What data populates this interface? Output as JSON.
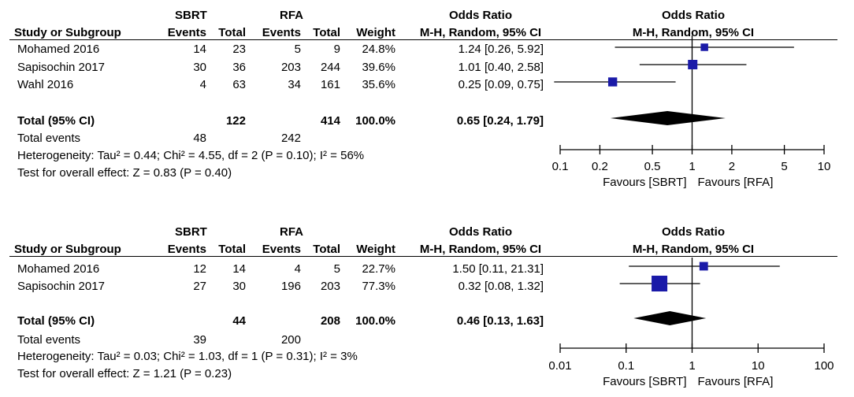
{
  "chart_data": [
    {
      "type": "forest",
      "headers": {
        "sbrt": "SBRT",
        "rfa": "RFA",
        "or_group": "Odds Ratio",
        "or_plot_group": "Odds Ratio",
        "study": "Study or Subgroup",
        "sbrt_events": "Events",
        "sbrt_total": "Total",
        "rfa_events": "Events",
        "rfa_total": "Total",
        "weight": "Weight",
        "or_method": "M-H, Random, 95% CI",
        "or_plot_method": "M-H, Random, 95% CI"
      },
      "studies": [
        {
          "name": "Mohamed 2016",
          "sbrt_events": "14",
          "sbrt_total": "23",
          "rfa_events": "5",
          "rfa_total": "9",
          "weight": "24.8%",
          "ci_text": "1.24 [0.26, 5.92]",
          "or": 1.24,
          "lo": 0.26,
          "hi": 5.92,
          "w": 24.8
        },
        {
          "name": "Sapisochin 2017",
          "sbrt_events": "30",
          "sbrt_total": "36",
          "rfa_events": "203",
          "rfa_total": "244",
          "weight": "39.6%",
          "ci_text": "1.01 [0.40, 2.58]",
          "or": 1.01,
          "lo": 0.4,
          "hi": 2.58,
          "w": 39.6
        },
        {
          "name": "Wahl 2016",
          "sbrt_events": "4",
          "sbrt_total": "63",
          "rfa_events": "34",
          "rfa_total": "161",
          "weight": "35.6%",
          "ci_text": "0.25 [0.09, 0.75]",
          "or": 0.25,
          "lo": 0.09,
          "hi": 0.75,
          "w": 35.6
        }
      ],
      "total": {
        "label": "Total (95% CI)",
        "sbrt_total": "122",
        "rfa_total": "414",
        "weight": "100.0%",
        "ci_text": "0.65 [0.24, 1.79]",
        "or": 0.65,
        "lo": 0.24,
        "hi": 1.79
      },
      "total_events": {
        "label": "Total events",
        "sbrt": "48",
        "rfa": "242"
      },
      "heterogeneity": "Heterogeneity: Tau² = 0.44; Chi² = 4.55, df = 2 (P = 0.10); I² = 56%",
      "overall_effect": "Test for overall effect: Z = 0.83 (P = 0.40)",
      "axis": {
        "scale": "log",
        "min": 0.1,
        "max": 10,
        "ticks": [
          0.1,
          0.2,
          0.5,
          1,
          2,
          5,
          10
        ],
        "tick_labels": [
          "0.1",
          "0.2",
          "0.5",
          "1",
          "2",
          "5",
          "10"
        ],
        "favours_left": "Favours [SBRT]",
        "favours_right": "Favours [RFA]"
      },
      "colors": {
        "marker": "#1a1aa8",
        "diamond": "#000000"
      }
    },
    {
      "type": "forest",
      "headers": {
        "sbrt": "SBRT",
        "rfa": "RFA",
        "or_group": "Odds Ratio",
        "or_plot_group": "Odds Ratio",
        "study": "Study or Subgroup",
        "sbrt_events": "Events",
        "sbrt_total": "Total",
        "rfa_events": "Events",
        "rfa_total": "Total",
        "weight": "Weight",
        "or_method": "M-H, Random, 95% CI",
        "or_plot_method": "M-H, Random, 95% CI"
      },
      "studies": [
        {
          "name": "Mohamed 2016",
          "sbrt_events": "12",
          "sbrt_total": "14",
          "rfa_events": "4",
          "rfa_total": "5",
          "weight": "22.7%",
          "ci_text": "1.50 [0.11, 21.31]",
          "or": 1.5,
          "lo": 0.11,
          "hi": 21.31,
          "w": 22.7
        },
        {
          "name": "Sapisochin 2017",
          "sbrt_events": "27",
          "sbrt_total": "30",
          "rfa_events": "196",
          "rfa_total": "203",
          "weight": "77.3%",
          "ci_text": "0.32 [0.08, 1.32]",
          "or": 0.32,
          "lo": 0.08,
          "hi": 1.32,
          "w": 77.3
        }
      ],
      "total": {
        "label": "Total (95% CI)",
        "sbrt_total": "44",
        "rfa_total": "208",
        "weight": "100.0%",
        "ci_text": "0.46 [0.13, 1.63]",
        "or": 0.46,
        "lo": 0.13,
        "hi": 1.63
      },
      "total_events": {
        "label": "Total events",
        "sbrt": "39",
        "rfa": "200"
      },
      "heterogeneity": "Heterogeneity: Tau² = 0.03; Chi² = 1.03, df = 1 (P = 0.31); I² = 3%",
      "overall_effect": "Test for overall effect: Z = 1.21 (P = 0.23)",
      "axis": {
        "scale": "log",
        "min": 0.01,
        "max": 100,
        "ticks": [
          0.01,
          0.1,
          1,
          10,
          100
        ],
        "tick_labels": [
          "0.01",
          "0.1",
          "1",
          "10",
          "100"
        ],
        "favours_left": "Favours [SBRT]",
        "favours_right": "Favours [RFA]"
      },
      "colors": {
        "marker": "#1a1aa8",
        "diamond": "#000000"
      }
    }
  ]
}
